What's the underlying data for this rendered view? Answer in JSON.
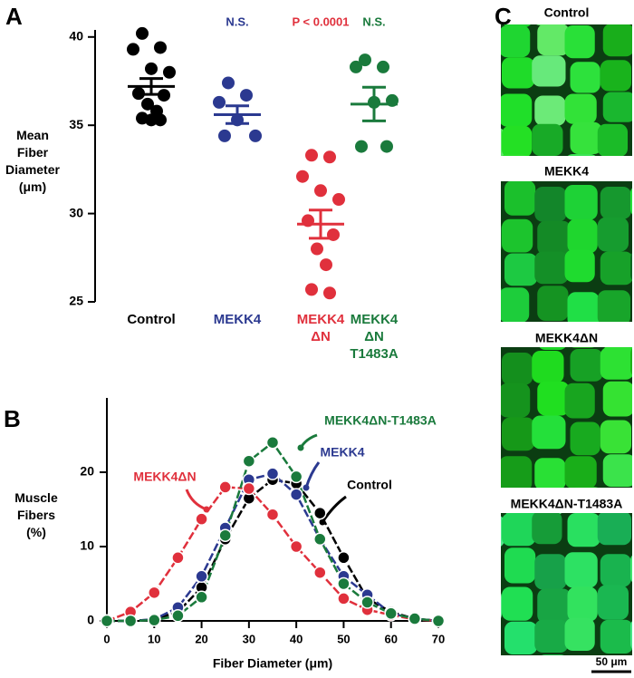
{
  "chart_data": [
    {
      "type": "dot",
      "panel": "A",
      "y_label": "Mean\nFiber\nDiameter\n(μm)",
      "ylim": [
        25,
        40.4
      ],
      "yticks": [
        25,
        30,
        35,
        40
      ],
      "series": [
        {
          "name": "Control",
          "color": "#000000",
          "values": [
            40.2,
            39.4,
            39.3,
            38.2,
            38.0,
            36.8,
            36.7,
            36.2,
            35.8,
            35.4,
            35.3,
            35.3
          ],
          "mean": 37.2,
          "sem": 0.45
        },
        {
          "name": "MEKK4",
          "color": "#2b3990",
          "annotation": "N.S.",
          "values": [
            37.4,
            36.7,
            36.3,
            35.3,
            34.4,
            34.4
          ],
          "mean": 35.6,
          "sem": 0.5
        },
        {
          "name": "MEKK4\nΔN",
          "color": "#e0303c",
          "annotation": "P < 0.0001",
          "values": [
            33.3,
            33.2,
            32.1,
            31.3,
            30.8,
            29.6,
            28.8,
            28.0,
            27.1,
            25.7,
            25.5
          ],
          "mean": 29.4,
          "sem": 0.8
        },
        {
          "name": "MEKK4\nΔN\nT1483A",
          "color": "#1a7a3c",
          "annotation": "N.S.",
          "values": [
            38.7,
            38.3,
            38.3,
            36.3,
            36.4,
            33.8,
            33.8
          ],
          "mean": 36.2,
          "sem": 0.95
        }
      ]
    },
    {
      "type": "line",
      "panel": "B",
      "x_label": "Fiber Diameter (μm)",
      "y_label": "Muscle\nFibers\n(%)",
      "xlim": [
        0,
        70
      ],
      "xticks": [
        0,
        10,
        20,
        30,
        40,
        50,
        60,
        70
      ],
      "ylim": [
        0,
        30
      ],
      "yticks": [
        0,
        10,
        20
      ],
      "x": [
        0,
        5,
        10,
        15,
        20,
        25,
        30,
        35,
        40,
        45,
        50,
        55,
        60,
        65,
        70
      ],
      "series": [
        {
          "name": "Control",
          "color": "#000000",
          "values": [
            0,
            0,
            0.2,
            1.2,
            4.5,
            11,
            16.5,
            19,
            18.5,
            14.5,
            8.5,
            3,
            1.2,
            0.3,
            0
          ]
        },
        {
          "name": "MEKK4",
          "color": "#2b3990",
          "values": [
            0,
            0,
            0.2,
            1.8,
            6,
            12.5,
            19,
            19.8,
            17,
            11,
            6,
            3.5,
            1,
            0.3,
            0
          ]
        },
        {
          "name": "MEKK4ΔN",
          "color": "#e0303c",
          "values": [
            0,
            1.2,
            3.8,
            8.5,
            13.7,
            18,
            17.8,
            14.3,
            10,
            6.5,
            3,
            1.5,
            0.8,
            0.2,
            0
          ]
        },
        {
          "name": "MEKK4ΔN-T1483A",
          "color": "#1a7a3c",
          "values": [
            0,
            0,
            0.1,
            0.7,
            3.2,
            11.5,
            21.5,
            24,
            19.4,
            11,
            5,
            2.5,
            1,
            0.3,
            0
          ]
        }
      ]
    }
  ],
  "images": {
    "panel": "C",
    "items": [
      {
        "label": "Control"
      },
      {
        "label": "MEKK4"
      },
      {
        "label": "MEKK4ΔN"
      },
      {
        "label": "MEKK4ΔN-T1483A"
      }
    ],
    "scale_bar": "50 μm"
  }
}
